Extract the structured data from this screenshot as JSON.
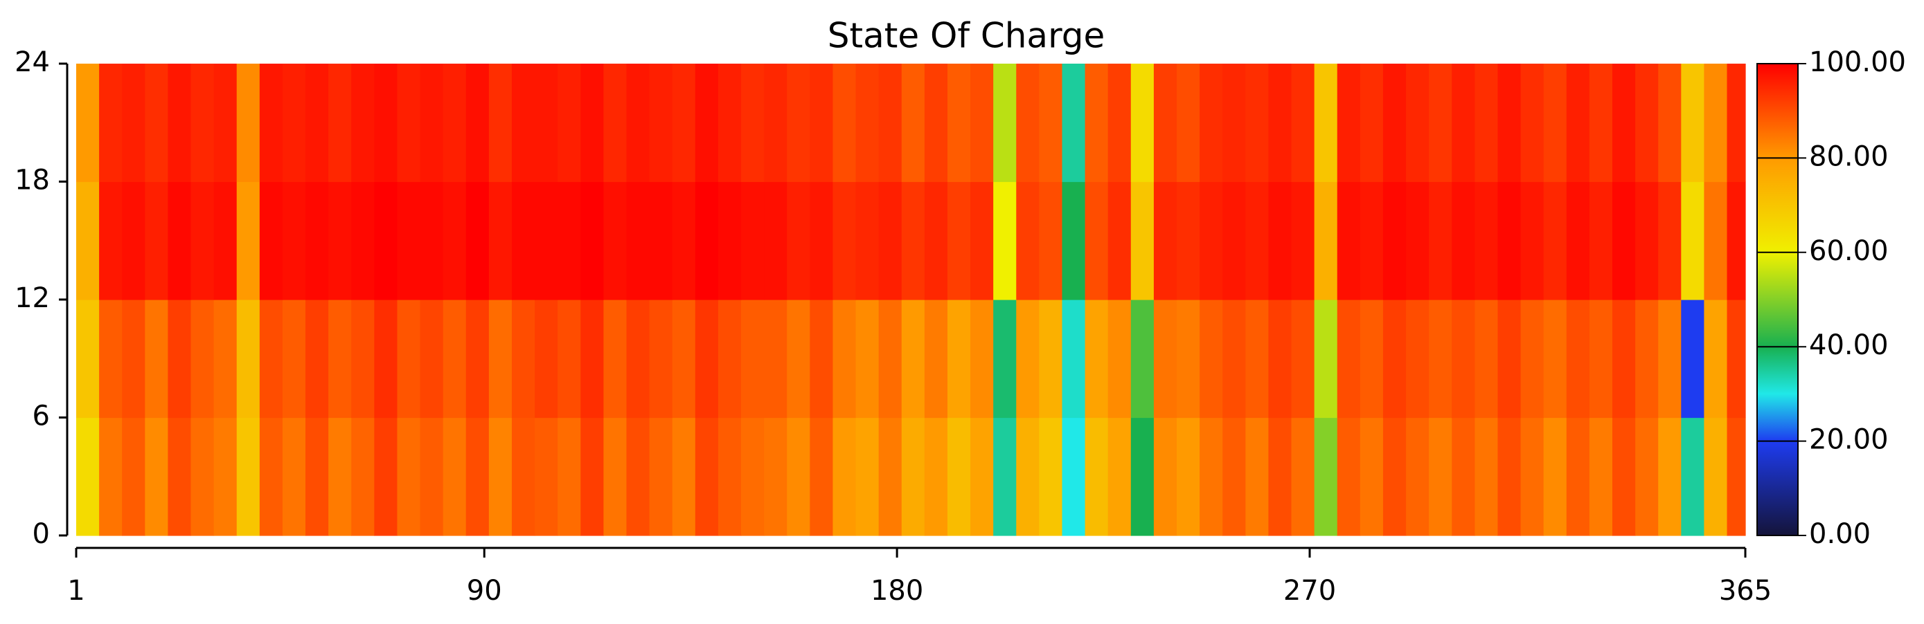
{
  "chart_data": {
    "type": "heatmap",
    "title": "State Of Charge",
    "xbins": [
      1,
      6,
      11,
      16,
      21,
      26,
      31,
      36,
      41,
      46,
      51,
      56,
      61,
      66,
      71,
      76,
      81,
      86,
      91,
      96,
      101,
      106,
      111,
      116,
      121,
      126,
      131,
      136,
      141,
      146,
      151,
      156,
      161,
      166,
      171,
      176,
      181,
      186,
      191,
      196,
      201,
      206,
      211,
      216,
      221,
      226,
      231,
      236,
      241,
      246,
      251,
      256,
      261,
      266,
      271,
      276,
      281,
      286,
      291,
      296,
      301,
      306,
      311,
      316,
      321,
      326,
      331,
      336,
      341,
      346,
      351,
      356,
      361,
      365
    ],
    "ybins": [
      0,
      6,
      12,
      18,
      24
    ],
    "values": [
      [
        65,
        85,
        88,
        82,
        90,
        86,
        84,
        70,
        88,
        85,
        90,
        84,
        87,
        92,
        86,
        88,
        85,
        90,
        83,
        89,
        88,
        86,
        92,
        85,
        90,
        87,
        84,
        91,
        88,
        86,
        85,
        82,
        88,
        80,
        78,
        84,
        76,
        80,
        72,
        78,
        35,
        75,
        70,
        30,
        72,
        78,
        40,
        82,
        80,
        85,
        88,
        84,
        90,
        86,
        50,
        88,
        85,
        90,
        87,
        84,
        88,
        85,
        90,
        86,
        82,
        88,
        84,
        90,
        86,
        80,
        35,
        75,
        90
      ],
      [
        70,
        88,
        90,
        85,
        92,
        88,
        86,
        72,
        90,
        88,
        92,
        88,
        90,
        94,
        89,
        91,
        88,
        92,
        86,
        90,
        92,
        90,
        94,
        88,
        92,
        90,
        88,
        93,
        90,
        88,
        88,
        85,
        90,
        84,
        82,
        86,
        80,
        84,
        78,
        82,
        38,
        80,
        75,
        32,
        78,
        82,
        45,
        85,
        84,
        88,
        90,
        88,
        92,
        90,
        55,
        90,
        88,
        92,
        90,
        88,
        90,
        88,
        92,
        88,
        86,
        90,
        88,
        92,
        88,
        84,
        20,
        78,
        92
      ],
      [
        75,
        97,
        98,
        96,
        99,
        97,
        98,
        80,
        99,
        98,
        99,
        98,
        99,
        100,
        99,
        99,
        98,
        100,
        97,
        99,
        99,
        99,
        100,
        98,
        99,
        99,
        98,
        100,
        99,
        98,
        98,
        96,
        97,
        94,
        95,
        96,
        93,
        95,
        92,
        94,
        60,
        92,
        90,
        40,
        90,
        94,
        70,
        95,
        94,
        96,
        97,
        96,
        98,
        97,
        75,
        98,
        97,
        99,
        98,
        96,
        98,
        97,
        99,
        97,
        95,
        98,
        96,
        99,
        97,
        94,
        65,
        85,
        97
      ],
      [
        80,
        95,
        96,
        94,
        97,
        95,
        96,
        82,
        97,
        96,
        97,
        95,
        97,
        98,
        96,
        97,
        96,
        98,
        94,
        97,
        97,
        96,
        98,
        95,
        97,
        96,
        95,
        98,
        96,
        94,
        95,
        93,
        94,
        90,
        92,
        93,
        88,
        92,
        88,
        90,
        55,
        90,
        88,
        35,
        88,
        92,
        65,
        92,
        90,
        94,
        95,
        94,
        96,
        94,
        70,
        96,
        94,
        97,
        95,
        93,
        96,
        94,
        97,
        94,
        92,
        96,
        93,
        97,
        94,
        90,
        70,
        82,
        95
      ]
    ],
    "xlim": [
      1,
      365
    ],
    "xticks": [
      1,
      90,
      180,
      270,
      365
    ],
    "ylim": [
      0,
      24
    ],
    "yticks": [
      0,
      6,
      12,
      18,
      24
    ],
    "clim": [
      0,
      100
    ],
    "cticks": [
      {
        "value": 0,
        "label": "0.00"
      },
      {
        "value": 20,
        "label": "20.00"
      },
      {
        "value": 40,
        "label": "40.00"
      },
      {
        "value": 60,
        "label": "60.00"
      },
      {
        "value": 80,
        "label": "80.00"
      },
      {
        "value": 100,
        "label": "100.00"
      }
    ],
    "colormap": [
      {
        "value": 0,
        "color": "#14143a"
      },
      {
        "value": 20,
        "color": "#1e3cf0"
      },
      {
        "value": 30,
        "color": "#20e8e8"
      },
      {
        "value": 40,
        "color": "#18b050"
      },
      {
        "value": 60,
        "color": "#f0f000"
      },
      {
        "value": 80,
        "color": "#ff9a00"
      },
      {
        "value": 100,
        "color": "#ff0000"
      }
    ]
  }
}
